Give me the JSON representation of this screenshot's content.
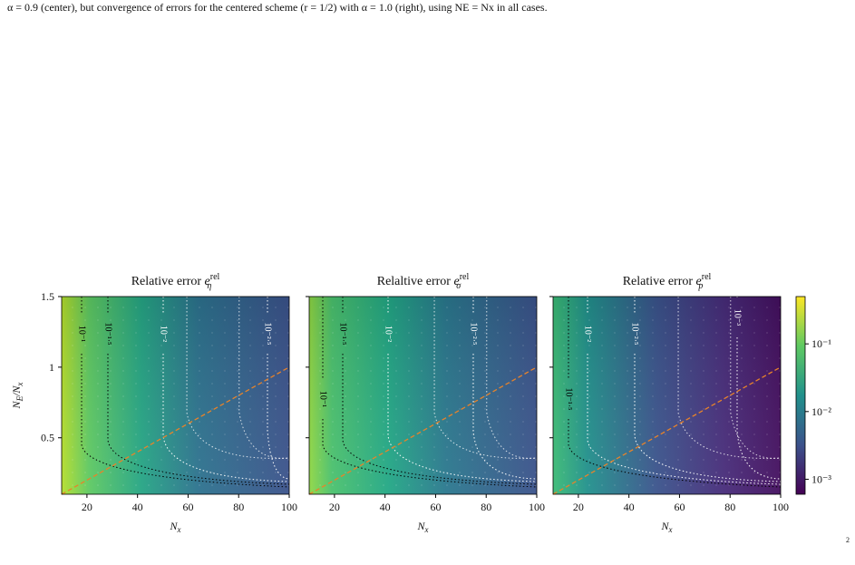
{
  "caption": "α = 0.9 (center), but convergence of errors for the centered scheme (r = 1/2) with α = 1.0 (right), using NE = Nx in all cases.",
  "page_number": "2",
  "chart_data": [
    {
      "type": "heatmap",
      "title": {
        "text": "Relative error ",
        "symbol": "e",
        "sub": "η",
        "sup": "rel"
      },
      "xlabel": {
        "symbol": "N",
        "sub": "x"
      },
      "ylabel": {
        "symbol": "N",
        "sub": "E",
        "rest": "/N",
        "rest_sub": "x"
      },
      "xlim": [
        10,
        100
      ],
      "xticks": [
        20,
        40,
        60,
        80,
        100
      ],
      "ylim": [
        0.1,
        1.5
      ],
      "yticks": [
        0.5,
        1,
        1.5
      ],
      "show_ytick_labels": true,
      "contour_labels": [
        "10⁻¹",
        "10⁻¹·⁵",
        "10⁻²",
        "10⁻²·⁵"
      ]
    },
    {
      "type": "heatmap",
      "title": {
        "text": "Relaltive error ",
        "symbol": "e",
        "sub": "σ",
        "sup": "rel"
      },
      "xlabel": {
        "symbol": "N",
        "sub": "x"
      },
      "xlim": [
        10,
        100
      ],
      "xticks": [
        20,
        40,
        60,
        80,
        100
      ],
      "ylim": [
        0.1,
        1.5
      ],
      "yticks": [
        0.5,
        1,
        1.5
      ],
      "show_ytick_labels": false,
      "contour_labels": [
        "10⁻¹",
        "10⁻¹·⁵",
        "10⁻²",
        "10⁻²·⁵"
      ]
    },
    {
      "type": "heatmap",
      "title": {
        "text": "Relative error ",
        "symbol": "e",
        "sub": "p",
        "sup": "rel"
      },
      "xlabel": {
        "symbol": "N",
        "sub": "x"
      },
      "xlim": [
        10,
        100
      ],
      "xticks": [
        20,
        40,
        60,
        80,
        100
      ],
      "ylim": [
        0.1,
        1.5
      ],
      "yticks": [
        0.5,
        1,
        1.5
      ],
      "show_ytick_labels": false,
      "contour_labels": [
        "10⁻¹·⁵",
        "10⁻²",
        "10⁻²·⁵",
        "10⁻³"
      ],
      "colorbar": {
        "log": true,
        "lim": [
          0.0006,
          0.5
        ],
        "ticks": [
          {
            "value": 0.1,
            "label": "10⁻¹"
          },
          {
            "value": 0.01,
            "label": "10⁻²"
          },
          {
            "value": 0.001,
            "label": "10⁻³"
          }
        ]
      }
    }
  ]
}
